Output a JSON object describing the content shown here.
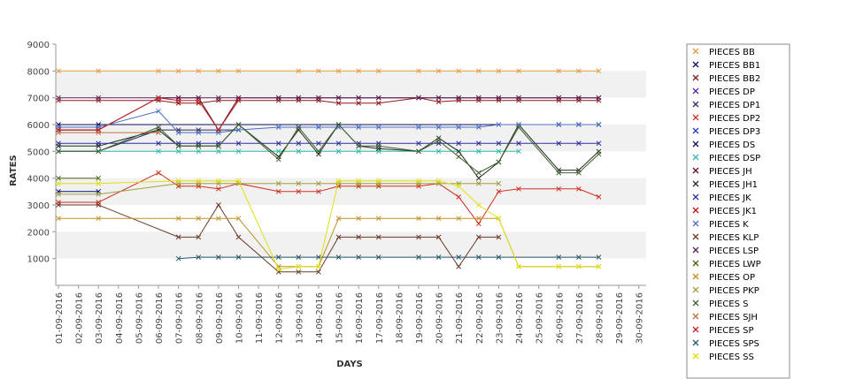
{
  "chart_data": {
    "type": "line",
    "xlabel": "DAYS",
    "ylabel": "RATES",
    "ylim": [
      0,
      9000
    ],
    "yticks": [
      1000,
      2000,
      3000,
      4000,
      5000,
      6000,
      7000,
      8000,
      9000
    ],
    "grid": "alternating horizontal bands",
    "legend_position": "right",
    "categories": [
      "01-09-2016",
      "02-09-2016",
      "03-09-2016",
      "04-09-2016",
      "05-09-2016",
      "06-09-2016",
      "07-09-2016",
      "08-09-2016",
      "09-09-2016",
      "10-09-2016",
      "11-09-2016",
      "12-09-2016",
      "13-09-2016",
      "14-09-2016",
      "15-09-2016",
      "16-09-2016",
      "17-09-2016",
      "18-09-2016",
      "19-09-2016",
      "20-09-2016",
      "21-09-2016",
      "22-09-2016",
      "23-09-2016",
      "24-09-2016",
      "25-09-2016",
      "26-09-2016",
      "27-09-2016",
      "28-09-2016",
      "29-09-2016",
      "30-09-2016"
    ],
    "series": [
      {
        "name": "PIECES BB",
        "color": "#e69a3c",
        "values": [
          8000,
          null,
          8000,
          null,
          null,
          8000,
          8000,
          8000,
          8000,
          8000,
          null,
          null,
          8000,
          8000,
          8000,
          8000,
          8000,
          null,
          8000,
          8000,
          8000,
          8000,
          8000,
          8000,
          null,
          8000,
          8000,
          8000,
          null,
          null
        ]
      },
      {
        "name": "PIECES BB1",
        "color": "#0a0a70",
        "values": [
          3500,
          null,
          3500,
          null,
          null,
          null,
          null,
          null,
          null,
          null,
          null,
          null,
          null,
          null,
          null,
          null,
          null,
          null,
          null,
          null,
          null,
          null,
          null,
          null,
          null,
          null,
          null,
          null,
          null,
          null
        ]
      },
      {
        "name": "PIECES BB2",
        "color": "#8b1a1a",
        "values": [
          6900,
          null,
          6900,
          null,
          null,
          6900,
          6800,
          6800,
          6900,
          6900,
          null,
          6900,
          6900,
          6900,
          6800,
          6800,
          6800,
          null,
          7000,
          6850,
          6900,
          6900,
          6900,
          6900,
          null,
          6900,
          6900,
          6900,
          null,
          null
        ]
      },
      {
        "name": "PIECES DP",
        "color": "#5a2aa6",
        "values": [
          5800,
          null,
          5800,
          null,
          null,
          null,
          null,
          null,
          null,
          null,
          null,
          null,
          null,
          null,
          null,
          null,
          null,
          null,
          null,
          null,
          null,
          null,
          null,
          null,
          null,
          null,
          null,
          null,
          null,
          null
        ]
      },
      {
        "name": "PIECES DP1",
        "color": "#303060",
        "values": [
          5000,
          null,
          5000,
          null,
          null,
          5800,
          5800,
          5800,
          5800,
          5800,
          null,
          null,
          null,
          null,
          null,
          null,
          null,
          null,
          null,
          null,
          null,
          null,
          null,
          null,
          null,
          null,
          null,
          null,
          null,
          null
        ]
      },
      {
        "name": "PIECES DP2",
        "color": "#d03020",
        "values": [
          3100,
          null,
          3100,
          null,
          null,
          4200,
          3700,
          3700,
          3600,
          3800,
          null,
          3500,
          3500,
          3500,
          3700,
          3700,
          3700,
          null,
          3700,
          3800,
          3300,
          2300,
          3500,
          3600,
          null,
          3600,
          3600,
          3300,
          null,
          null
        ]
      },
      {
        "name": "PIECES DP3",
        "color": "#2040c0",
        "values": [
          null,
          null,
          null,
          null,
          null,
          null,
          null,
          null,
          null,
          null,
          null,
          null,
          null,
          null,
          null,
          null,
          null,
          null,
          null,
          null,
          null,
          null,
          null,
          null,
          null,
          null,
          null,
          null,
          null,
          null
        ]
      },
      {
        "name": "PIECES DS",
        "color": "#101060",
        "values": [
          6000,
          null,
          6000,
          null,
          null,
          null,
          null,
          null,
          null,
          null,
          null,
          null,
          null,
          null,
          null,
          null,
          null,
          null,
          null,
          null,
          null,
          null,
          null,
          null,
          null,
          6000,
          6000,
          6000,
          null,
          null
        ]
      },
      {
        "name": "PIECES DSP",
        "color": "#30b8a8",
        "values": [
          5000,
          null,
          5000,
          null,
          null,
          5000,
          5000,
          5000,
          5000,
          5000,
          null,
          5000,
          5000,
          5000,
          5000,
          5000,
          5000,
          null,
          5000,
          5000,
          5000,
          5000,
          5000,
          5000,
          null,
          null,
          null,
          null,
          null,
          null
        ]
      },
      {
        "name": "PIECES JH",
        "color": "#601020",
        "values": [
          5800,
          null,
          5800,
          null,
          null,
          7000,
          7000,
          7000,
          5800,
          7000,
          null,
          7000,
          7000,
          7000,
          7000,
          7000,
          7000,
          null,
          7000,
          7000,
          7000,
          7000,
          7000,
          7000,
          null,
          7000,
          7000,
          7000,
          null,
          null
        ]
      },
      {
        "name": "PIECES JH1",
        "color": "#203020",
        "values": [
          5200,
          null,
          5200,
          null,
          null,
          5800,
          5200,
          5200,
          5200,
          6000,
          null,
          4800,
          5800,
          4900,
          6000,
          5200,
          5100,
          null,
          5000,
          5500,
          5000,
          4000,
          4600,
          6000,
          null,
          4300,
          4300,
          5000,
          null,
          null
        ]
      },
      {
        "name": "PIECES JK",
        "color": "#3030a0",
        "values": [
          5300,
          null,
          5300,
          null,
          null,
          5300,
          5300,
          5300,
          5300,
          5300,
          null,
          5300,
          5300,
          5300,
          5300,
          5300,
          5300,
          null,
          5300,
          5300,
          5300,
          5300,
          5300,
          5300,
          null,
          5300,
          5300,
          5300,
          null,
          null
        ]
      },
      {
        "name": "PIECES JK1",
        "color": "#c01010",
        "values": [
          null,
          null,
          null,
          null,
          null,
          null,
          null,
          null,
          null,
          null,
          null,
          null,
          null,
          null,
          null,
          null,
          null,
          null,
          null,
          null,
          null,
          null,
          null,
          null,
          null,
          null,
          null,
          null,
          null,
          null
        ]
      },
      {
        "name": "PIECES K",
        "color": "#4a70c0",
        "values": [
          5900,
          null,
          5900,
          null,
          null,
          6500,
          5700,
          5700,
          5700,
          5800,
          null,
          5900,
          5900,
          5900,
          5900,
          5900,
          5900,
          null,
          5900,
          5900,
          5900,
          5900,
          6000,
          6000,
          null,
          6000,
          6000,
          6000,
          null,
          null
        ]
      },
      {
        "name": "PIECES KLP",
        "color": "#6b3a2a",
        "values": [
          3000,
          null,
          3000,
          null,
          null,
          null,
          1800,
          1800,
          3000,
          1800,
          null,
          500,
          500,
          500,
          1800,
          1800,
          1800,
          null,
          1800,
          1800,
          700,
          1800,
          1800,
          null,
          null,
          null,
          null,
          null,
          null,
          null
        ]
      },
      {
        "name": "PIECES LSP",
        "color": "#5a1a5a",
        "values": [
          7000,
          null,
          7000,
          null,
          null,
          7000,
          7000,
          7000,
          7000,
          7000,
          null,
          7000,
          7000,
          7000,
          7000,
          7000,
          7000,
          null,
          7000,
          7000,
          7000,
          7000,
          7000,
          7000,
          null,
          7000,
          7000,
          7000,
          null,
          null
        ]
      },
      {
        "name": "PIECES LWP",
        "color": "#4a6010",
        "values": [
          4000,
          null,
          4000,
          null,
          null,
          null,
          null,
          null,
          null,
          null,
          null,
          null,
          null,
          null,
          null,
          null,
          null,
          null,
          null,
          null,
          null,
          null,
          null,
          null,
          null,
          null,
          null,
          null,
          null,
          null
        ]
      },
      {
        "name": "PIECES OP",
        "color": "#c09020",
        "values": [
          2500,
          null,
          2500,
          null,
          null,
          null,
          2500,
          2500,
          2500,
          2500,
          null,
          700,
          700,
          700,
          2500,
          2500,
          2500,
          null,
          2500,
          2500,
          2500,
          2500,
          2500,
          700,
          null,
          700,
          700,
          700,
          null,
          null
        ]
      },
      {
        "name": "PIECES PKP",
        "color": "#a0a040",
        "values": [
          3400,
          null,
          3400,
          null,
          null,
          null,
          3800,
          3800,
          3800,
          3800,
          null,
          3800,
          3800,
          3800,
          3800,
          3800,
          3800,
          null,
          3800,
          3800,
          3800,
          3800,
          3800,
          null,
          null,
          null,
          null,
          null,
          null,
          null
        ]
      },
      {
        "name": "PIECES S",
        "color": "#406030",
        "values": [
          5000,
          null,
          5000,
          null,
          null,
          5900,
          5200,
          5200,
          5200,
          6000,
          null,
          4700,
          5900,
          5000,
          6000,
          5200,
          5200,
          null,
          5000,
          5400,
          4800,
          4200,
          4600,
          5900,
          null,
          4200,
          4200,
          4900,
          null,
          null
        ]
      },
      {
        "name": "PIECES SJH",
        "color": "#c07040",
        "values": [
          5700,
          null,
          5700,
          null,
          null,
          5700,
          null,
          null,
          null,
          null,
          null,
          null,
          null,
          null,
          null,
          null,
          null,
          null,
          null,
          null,
          null,
          null,
          null,
          null,
          null,
          null,
          null,
          null,
          null,
          null
        ]
      },
      {
        "name": "PIECES SP",
        "color": "#c02020",
        "values": [
          5800,
          null,
          5800,
          null,
          null,
          7000,
          6900,
          6900,
          5800,
          6900,
          null,
          null,
          null,
          null,
          null,
          null,
          null,
          null,
          null,
          null,
          null,
          null,
          null,
          null,
          null,
          null,
          null,
          null,
          null,
          null
        ]
      },
      {
        "name": "PIECES SPS",
        "color": "#2a5a6a",
        "values": [
          null,
          null,
          null,
          null,
          null,
          null,
          1000,
          1050,
          1050,
          1050,
          null,
          1050,
          1050,
          1050,
          1050,
          1050,
          1050,
          null,
          1050,
          1050,
          1050,
          1050,
          1050,
          null,
          null,
          1050,
          1050,
          1050,
          null,
          null
        ]
      },
      {
        "name": "PIECES SS",
        "color": "#e0e010",
        "values": [
          3800,
          null,
          3800,
          null,
          null,
          null,
          3900,
          3900,
          3900,
          3900,
          null,
          600,
          700,
          700,
          3900,
          3900,
          3900,
          null,
          3900,
          3900,
          3700,
          3000,
          2500,
          700,
          null,
          700,
          700,
          700,
          null,
          null
        ]
      }
    ]
  }
}
